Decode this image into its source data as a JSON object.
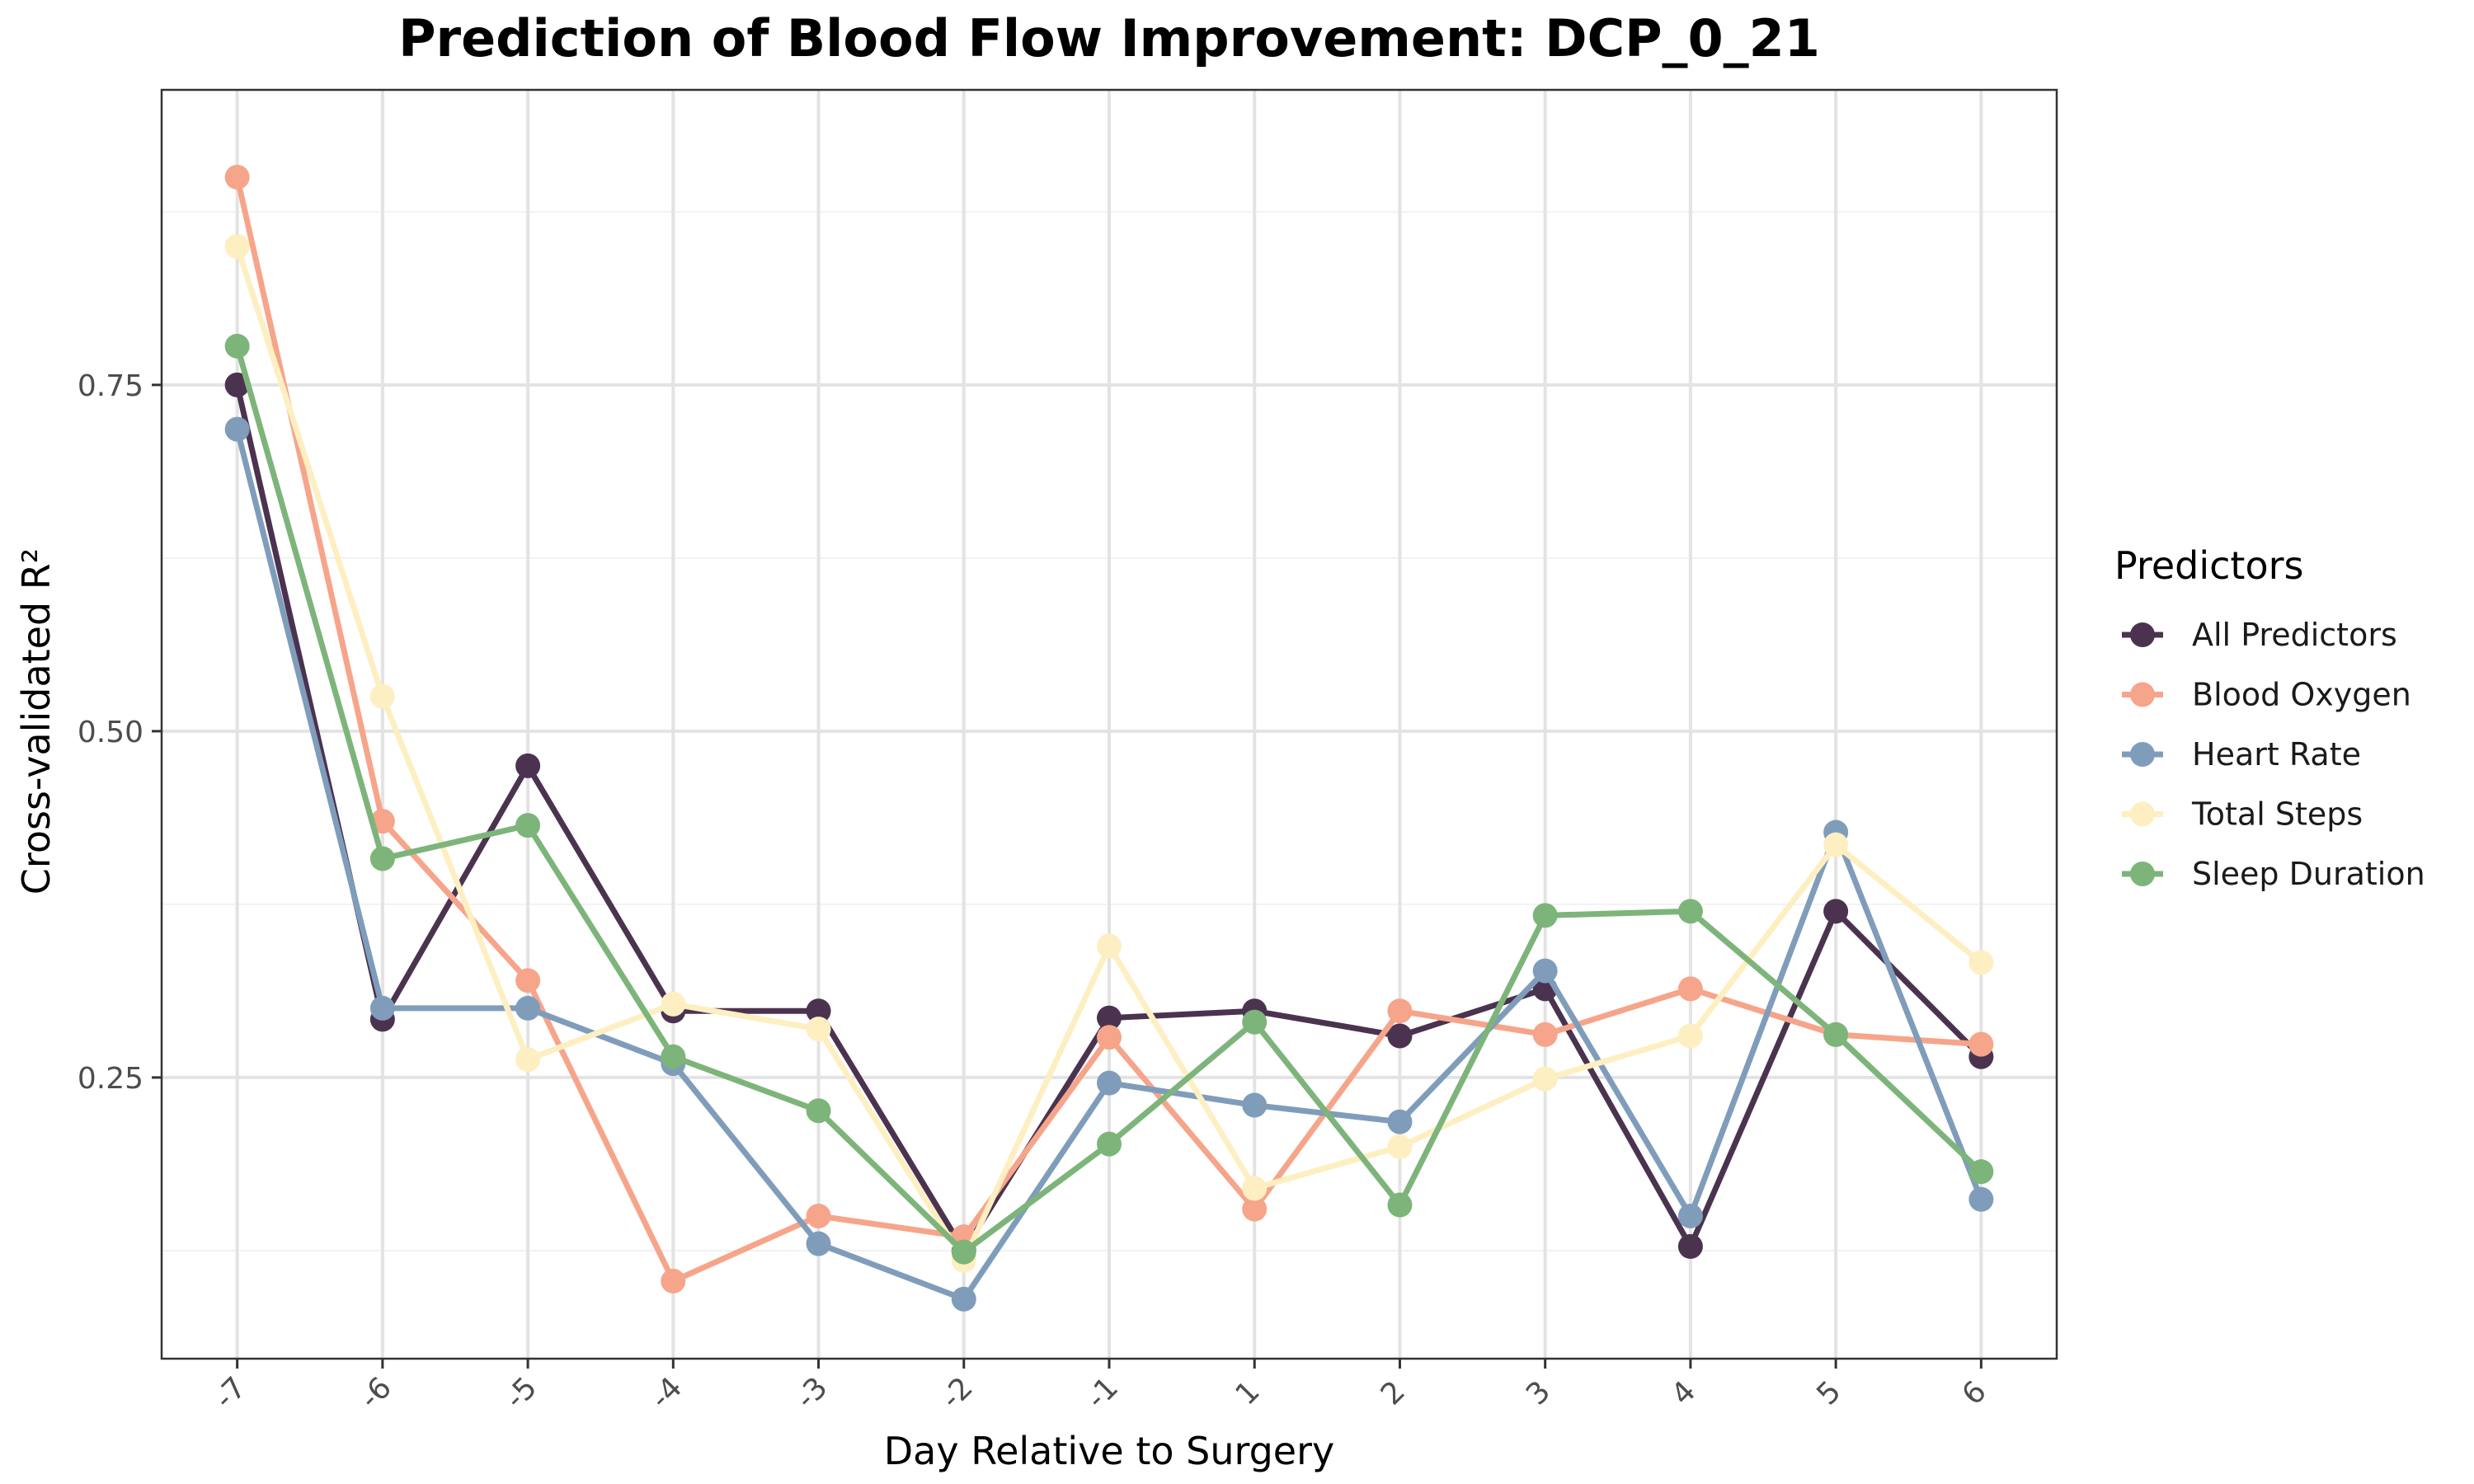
{
  "chart_data": {
    "type": "line",
    "title": "Prediction of Blood Flow Improvement: DCP_0_21",
    "xlabel": "Day Relative to Surgery",
    "ylabel": "Cross-validated R²",
    "categories": [
      "-7",
      "-6",
      "-5",
      "-4",
      "-3",
      "-2",
      "-1",
      "1",
      "2",
      "3",
      "4",
      "5",
      "6"
    ],
    "ylim": [
      0.047,
      0.963
    ],
    "yticks": [
      0.25,
      0.5,
      0.75
    ],
    "ytick_labels": [
      "0.25",
      "0.50",
      "0.75"
    ],
    "grid": true,
    "legend": {
      "title": "Predictors",
      "position": "right"
    },
    "series": [
      {
        "name": "All Predictors",
        "color": "#4b3350",
        "values": [
          0.75,
          0.292,
          0.475,
          0.298,
          0.298,
          0.125,
          0.293,
          0.298,
          0.28,
          0.314,
          0.128,
          0.37,
          0.265
        ]
      },
      {
        "name": "Blood Oxygen",
        "color": "#f6a58a",
        "values": [
          0.9,
          0.435,
          0.32,
          0.103,
          0.15,
          0.135,
          0.279,
          0.155,
          0.298,
          0.281,
          0.314,
          0.281,
          0.274
        ]
      },
      {
        "name": "Heart Rate",
        "color": "#7f9dbb",
        "values": [
          0.718,
          0.3,
          0.3,
          0.26,
          0.13,
          0.09,
          0.246,
          0.23,
          0.218,
          0.327,
          0.15,
          0.427,
          0.162
        ]
      },
      {
        "name": "Total Steps",
        "color": "#fdefc1",
        "values": [
          0.85,
          0.525,
          0.263,
          0.303,
          0.285,
          0.118,
          0.345,
          0.17,
          0.2,
          0.249,
          0.28,
          0.418,
          0.333
        ]
      },
      {
        "name": "Sleep Duration",
        "color": "#7db47a",
        "values": [
          0.778,
          0.408,
          0.432,
          0.265,
          0.226,
          0.124,
          0.202,
          0.29,
          0.158,
          0.367,
          0.37,
          0.281,
          0.182
        ]
      }
    ]
  }
}
